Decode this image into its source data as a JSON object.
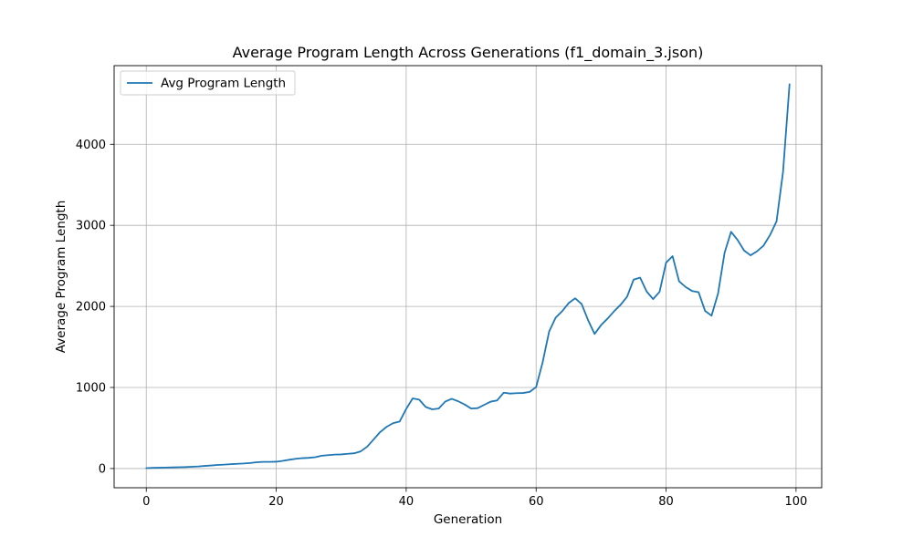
{
  "chart_data": {
    "type": "line",
    "title": "Average Program Length Across Generations (f1_domain_3.json)",
    "xlabel": "Generation",
    "ylabel": "Average Program Length",
    "xlim": [
      -4.95,
      103.95
    ],
    "ylim": [
      -237,
      4970
    ],
    "xticks": [
      0,
      20,
      40,
      60,
      80,
      100
    ],
    "yticks": [
      0,
      1000,
      2000,
      3000,
      4000
    ],
    "grid": true,
    "legend_position": "upper-left",
    "series": [
      {
        "name": "Avg Program Length",
        "color": "#1f77b4",
        "x": [
          0,
          1,
          2,
          3,
          4,
          5,
          6,
          7,
          8,
          9,
          10,
          11,
          12,
          13,
          14,
          15,
          16,
          17,
          18,
          19,
          20,
          21,
          22,
          23,
          24,
          25,
          26,
          27,
          28,
          29,
          30,
          31,
          32,
          33,
          34,
          35,
          36,
          37,
          38,
          39,
          40,
          41,
          42,
          43,
          44,
          45,
          46,
          47,
          48,
          49,
          50,
          51,
          52,
          53,
          54,
          55,
          56,
          57,
          58,
          59,
          60,
          61,
          62,
          63,
          64,
          65,
          66,
          67,
          68,
          69,
          70,
          71,
          72,
          73,
          74,
          75,
          76,
          77,
          78,
          79,
          80,
          81,
          82,
          83,
          84,
          85,
          86,
          87,
          88,
          89,
          90,
          91,
          92,
          93,
          94,
          95,
          96,
          97,
          98,
          99
        ],
        "values": [
          5,
          8,
          10,
          12,
          14,
          16,
          18,
          22,
          26,
          32,
          38,
          44,
          48,
          54,
          58,
          62,
          68,
          78,
          82,
          82,
          84,
          95,
          108,
          120,
          128,
          132,
          140,
          158,
          165,
          172,
          174,
          182,
          188,
          212,
          270,
          360,
          450,
          515,
          560,
          580,
          735,
          865,
          850,
          760,
          730,
          740,
          825,
          860,
          830,
          790,
          740,
          745,
          785,
          825,
          840,
          935,
          925,
          930,
          932,
          945,
          1005,
          1310,
          1690,
          1860,
          1940,
          2040,
          2100,
          2030,
          1830,
          1660,
          1770,
          1850,
          1940,
          2020,
          2120,
          2330,
          2355,
          2185,
          2090,
          2180,
          2540,
          2620,
          2310,
          2240,
          2190,
          2175,
          1945,
          1885,
          2160,
          2660,
          2920,
          2820,
          2690,
          2630,
          2680,
          2750,
          2880,
          3050,
          3660,
          4740
        ]
      }
    ]
  }
}
